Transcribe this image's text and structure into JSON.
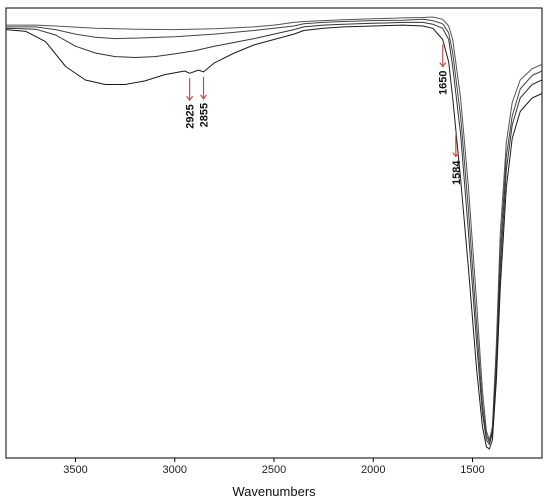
{
  "chart_data": {
    "type": "line",
    "title": "",
    "xlabel": "Wavenumbers",
    "ylabel": "",
    "x_reversed": true,
    "xlim": [
      3850,
      1150
    ],
    "ylim": [
      0,
      1
    ],
    "x_ticks": [
      3500,
      3000,
      2500,
      2000,
      1500
    ],
    "x_tick_labels": [
      "3500",
      "3000",
      "2500",
      "2000",
      "1500"
    ],
    "grid": false,
    "legend": "none",
    "series": [
      {
        "color": "#555555",
        "points": [
          [
            3850,
            0.962
          ],
          [
            3700,
            0.962
          ],
          [
            3600,
            0.96
          ],
          [
            3400,
            0.955
          ],
          [
            3200,
            0.953
          ],
          [
            3000,
            0.952
          ],
          [
            2800,
            0.954
          ],
          [
            2600,
            0.958
          ],
          [
            2500,
            0.962
          ],
          [
            2400,
            0.968
          ],
          [
            2350,
            0.97
          ],
          [
            2250,
            0.972
          ],
          [
            2150,
            0.974
          ],
          [
            2000,
            0.976
          ],
          [
            1850,
            0.978
          ],
          [
            1750,
            0.979
          ],
          [
            1700,
            0.98
          ],
          [
            1650,
            0.975
          ],
          [
            1620,
            0.96
          ],
          [
            1600,
            0.93
          ],
          [
            1560,
            0.8
          ],
          [
            1520,
            0.6
          ],
          [
            1480,
            0.35
          ],
          [
            1450,
            0.15
          ],
          [
            1430,
            0.06
          ],
          [
            1415,
            0.04
          ],
          [
            1400,
            0.07
          ],
          [
            1380,
            0.25
          ],
          [
            1360,
            0.5
          ],
          [
            1330,
            0.7
          ],
          [
            1300,
            0.79
          ],
          [
            1260,
            0.84
          ],
          [
            1200,
            0.865
          ],
          [
            1150,
            0.875
          ]
        ]
      },
      {
        "color": "#444444",
        "points": [
          [
            3850,
            0.958
          ],
          [
            3700,
            0.958
          ],
          [
            3600,
            0.952
          ],
          [
            3500,
            0.942
          ],
          [
            3400,
            0.935
          ],
          [
            3300,
            0.932
          ],
          [
            3200,
            0.933
          ],
          [
            3000,
            0.936
          ],
          [
            2800,
            0.942
          ],
          [
            2600,
            0.95
          ],
          [
            2500,
            0.955
          ],
          [
            2400,
            0.96
          ],
          [
            2350,
            0.965
          ],
          [
            2250,
            0.968
          ],
          [
            2150,
            0.97
          ],
          [
            2000,
            0.972
          ],
          [
            1850,
            0.973
          ],
          [
            1750,
            0.975
          ],
          [
            1700,
            0.972
          ],
          [
            1650,
            0.965
          ],
          [
            1620,
            0.945
          ],
          [
            1600,
            0.9
          ],
          [
            1560,
            0.76
          ],
          [
            1520,
            0.55
          ],
          [
            1480,
            0.3
          ],
          [
            1450,
            0.12
          ],
          [
            1430,
            0.05
          ],
          [
            1415,
            0.035
          ],
          [
            1400,
            0.06
          ],
          [
            1380,
            0.22
          ],
          [
            1360,
            0.46
          ],
          [
            1330,
            0.67
          ],
          [
            1300,
            0.76
          ],
          [
            1260,
            0.82
          ],
          [
            1200,
            0.85
          ],
          [
            1150,
            0.86
          ]
        ]
      },
      {
        "color": "#333333",
        "points": [
          [
            3850,
            0.955
          ],
          [
            3700,
            0.953
          ],
          [
            3600,
            0.94
          ],
          [
            3500,
            0.915
          ],
          [
            3400,
            0.9
          ],
          [
            3300,
            0.892
          ],
          [
            3200,
            0.89
          ],
          [
            3100,
            0.892
          ],
          [
            3000,
            0.898
          ],
          [
            2900,
            0.905
          ],
          [
            2800,
            0.915
          ],
          [
            2600,
            0.932
          ],
          [
            2500,
            0.942
          ],
          [
            2400,
            0.952
          ],
          [
            2350,
            0.958
          ],
          [
            2250,
            0.962
          ],
          [
            2150,
            0.964
          ],
          [
            2000,
            0.966
          ],
          [
            1850,
            0.968
          ],
          [
            1750,
            0.968
          ],
          [
            1700,
            0.964
          ],
          [
            1650,
            0.955
          ],
          [
            1620,
            0.93
          ],
          [
            1600,
            0.87
          ],
          [
            1560,
            0.72
          ],
          [
            1520,
            0.5
          ],
          [
            1480,
            0.26
          ],
          [
            1450,
            0.1
          ],
          [
            1430,
            0.04
          ],
          [
            1415,
            0.03
          ],
          [
            1400,
            0.055
          ],
          [
            1380,
            0.2
          ],
          [
            1360,
            0.42
          ],
          [
            1330,
            0.64
          ],
          [
            1300,
            0.74
          ],
          [
            1260,
            0.8
          ],
          [
            1200,
            0.83
          ],
          [
            1150,
            0.84
          ]
        ]
      },
      {
        "color": "#1a1a1a",
        "points": [
          [
            3850,
            0.952
          ],
          [
            3750,
            0.948
          ],
          [
            3650,
            0.925
          ],
          [
            3550,
            0.87
          ],
          [
            3450,
            0.84
          ],
          [
            3350,
            0.83
          ],
          [
            3250,
            0.83
          ],
          [
            3150,
            0.838
          ],
          [
            3050,
            0.852
          ],
          [
            2950,
            0.86
          ],
          [
            2925,
            0.855
          ],
          [
            2880,
            0.862
          ],
          [
            2855,
            0.858
          ],
          [
            2800,
            0.878
          ],
          [
            2700,
            0.9
          ],
          [
            2600,
            0.918
          ],
          [
            2500,
            0.93
          ],
          [
            2400,
            0.942
          ],
          [
            2350,
            0.95
          ],
          [
            2250,
            0.955
          ],
          [
            2150,
            0.958
          ],
          [
            2000,
            0.96
          ],
          [
            1850,
            0.962
          ],
          [
            1750,
            0.96
          ],
          [
            1700,
            0.955
          ],
          [
            1650,
            0.93
          ],
          [
            1620,
            0.88
          ],
          [
            1600,
            0.8
          ],
          [
            1584,
            0.73
          ],
          [
            1560,
            0.62
          ],
          [
            1520,
            0.42
          ],
          [
            1480,
            0.2
          ],
          [
            1450,
            0.07
          ],
          [
            1430,
            0.025
          ],
          [
            1415,
            0.02
          ],
          [
            1400,
            0.04
          ],
          [
            1380,
            0.17
          ],
          [
            1360,
            0.38
          ],
          [
            1330,
            0.6
          ],
          [
            1300,
            0.71
          ],
          [
            1260,
            0.77
          ],
          [
            1200,
            0.8
          ],
          [
            1150,
            0.81
          ]
        ]
      }
    ],
    "annotations": [
      {
        "label": "2925",
        "x": 2925
      },
      {
        "label": "2855",
        "x": 2855
      },
      {
        "label": "1650",
        "x": 1650
      },
      {
        "label": "1584",
        "x": 1584
      }
    ],
    "arrow_color": "#c0504d"
  }
}
